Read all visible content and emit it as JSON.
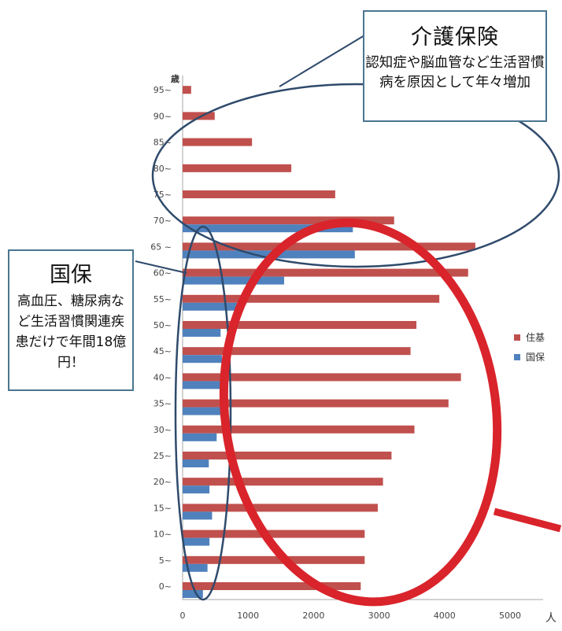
{
  "chart_data": {
    "type": "bar",
    "orientation": "horizontal",
    "categories": [
      "0~",
      "5~",
      "10~",
      "15~",
      "20~",
      "25~",
      "30~",
      "35~",
      "40~",
      "45~",
      "50~",
      "55~",
      "60~",
      "65 ~",
      "70~",
      "75~",
      "80~",
      "85~",
      "90~",
      "95~"
    ],
    "series": [
      {
        "name": "住基",
        "color": "#c0504d",
        "values": [
          2720,
          2780,
          2780,
          2980,
          3060,
          3190,
          3540,
          4060,
          4250,
          3480,
          3570,
          3920,
          4360,
          4470,
          3230,
          2330,
          1660,
          1060,
          490,
          130
        ]
      },
      {
        "name": "国保",
        "color": "#4f81bd",
        "values": [
          310,
          380,
          410,
          450,
          410,
          400,
          520,
          580,
          640,
          600,
          580,
          830,
          1550,
          2630,
          2600,
          0,
          0,
          0,
          0,
          0
        ]
      }
    ],
    "ylabel": "歳",
    "xlabel": "人",
    "xlim": [
      0,
      5000
    ],
    "xticks": [
      "0",
      "1000",
      "2000",
      "3000",
      "4000",
      "5000"
    ],
    "grid": false,
    "legend_position": "right"
  },
  "callouts": {
    "kaigo": {
      "title": "介護保険",
      "text": "認知症や脳血管など生活習慣病を原因として年々増加"
    },
    "kokuho": {
      "title": "国保",
      "text": "高血圧、糖尿病など生活習慣関連疾患だけで年間18億円！"
    }
  },
  "colors": {
    "ellipse_blue": "#2f4a6b",
    "ellipse_red": "#d9242b",
    "callout_border": "#4a7590"
  }
}
